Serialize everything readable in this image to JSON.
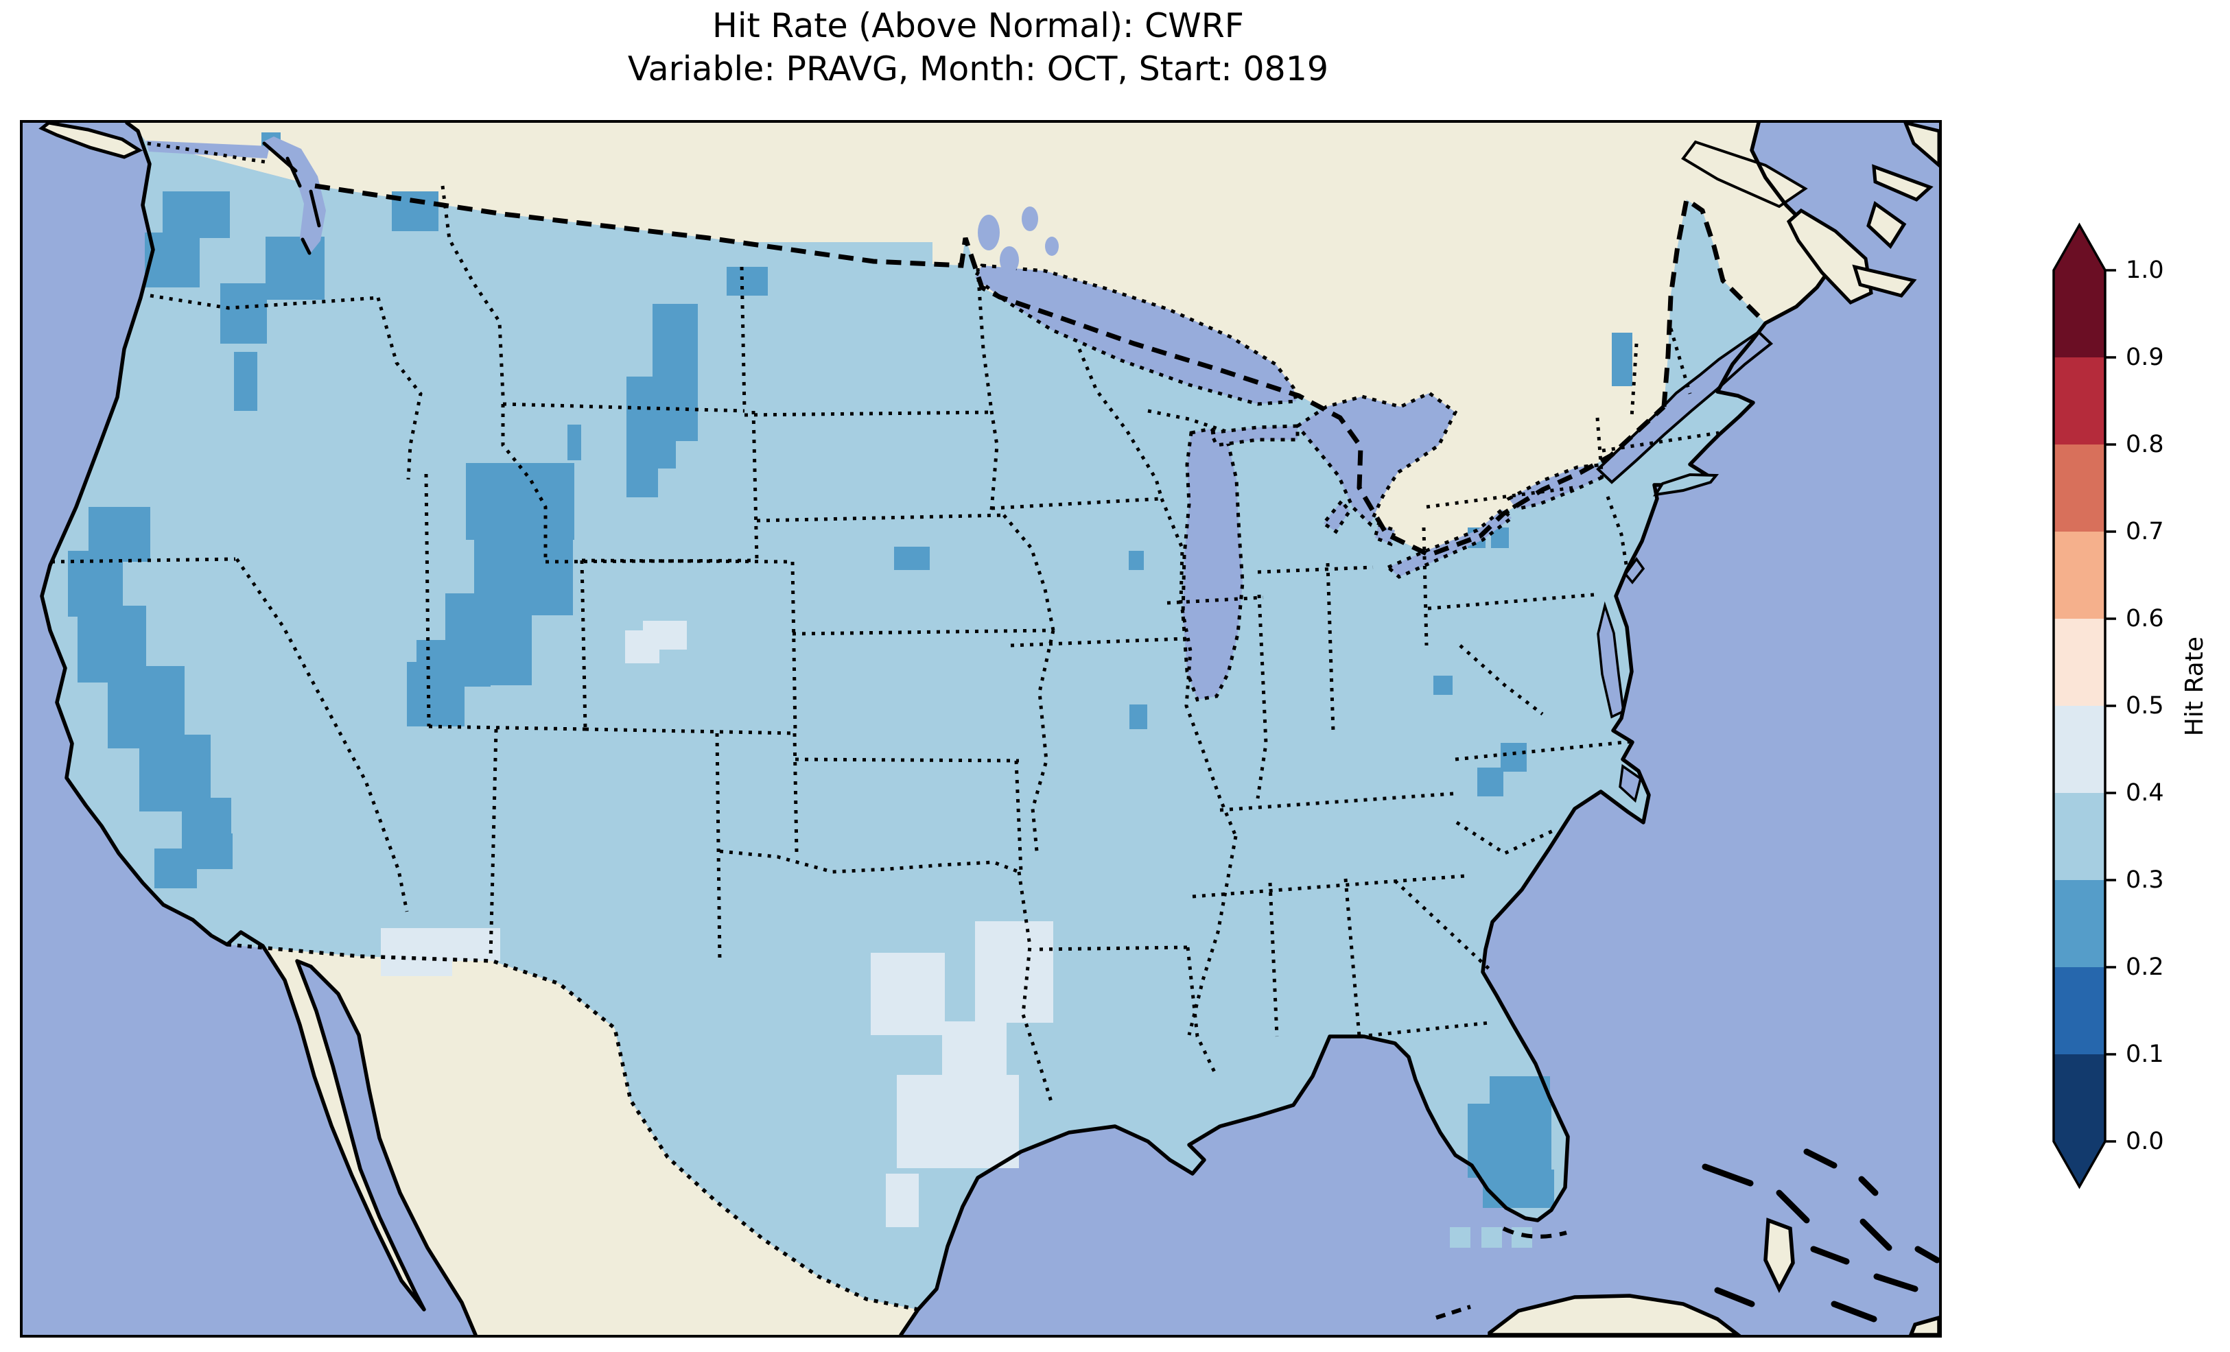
{
  "title": {
    "line1": "Hit Rate (Above Normal): CWRF",
    "line2": "Variable: PRAVG, Month: OCT, Start: 0819"
  },
  "colorbar": {
    "label": "Hit Rate",
    "ticks": [
      "1.0",
      "0.9",
      "0.8",
      "0.7",
      "0.6",
      "0.5",
      "0.4",
      "0.3",
      "0.2",
      "0.1",
      "0.0"
    ],
    "extend": "both",
    "arrow_top_color": "#6b0e24",
    "arrow_bottom_color": "#123a6d",
    "segments_top_to_bottom": [
      {
        "range": "0.9-1.0",
        "color": "#6b0e24"
      },
      {
        "range": "0.8-0.9",
        "color": "#b52b3b"
      },
      {
        "range": "0.7-0.8",
        "color": "#d8705b"
      },
      {
        "range": "0.6-0.7",
        "color": "#f5b08c"
      },
      {
        "range": "0.5-0.6",
        "color": "#fbe5d7"
      },
      {
        "range": "0.4-0.5",
        "color": "#dde9f2"
      },
      {
        "range": "0.3-0.4",
        "color": "#a6cee1"
      },
      {
        "range": "0.2-0.3",
        "color": "#559dc9"
      },
      {
        "range": "0.1-0.2",
        "color": "#2667ad"
      },
      {
        "range": "0.0-0.1",
        "color": "#123a6d"
      }
    ]
  },
  "map": {
    "ocean_color": "#97acdb",
    "land_color": "#f0eddb",
    "coastline_color": "#000000"
  },
  "chart_data": {
    "type": "heatmap",
    "title": "Hit Rate (Above Normal): CWRF",
    "subtitle": "Variable: PRAVG, Month: OCT, Start: 0819",
    "colorbar_label": "Hit Rate",
    "value_range": [
      0.0,
      1.0
    ],
    "bin_width": 0.1,
    "colormap": "RdBu_r, 10 discrete bins, colorbar extended with arrows at both ends",
    "legend_position": "right",
    "bins": {
      "0.0-0.1": "#123a6d",
      "0.1-0.2": "#2667ad",
      "0.2-0.3": "#559dc9",
      "0.3-0.4": "#a6cee1",
      "0.4-0.5": "#dde9f2",
      "0.5-0.6": "#fbe5d7",
      "0.6-0.7": "#f5b08c",
      "0.7-0.8": "#d8705b",
      "0.8-0.9": "#b52b3b",
      "0.9-1.0": "#6b0e24"
    },
    "dominant_bin": "0.3-0.4",
    "summary": "Hit rate over CONUS is mostly 0.3-0.4. Lower values (0.2-0.3) over western Washington, Cascades, northern Idaho, Sierra Nevada/Nevada, Utah, Montana-Wyoming, scattered plains/Northeast cells and central-south Florida. Higher values (0.4-0.5) over east/central Texas, north-central Colorado and the New Mexico border region.",
    "patches": {
      "0.2-0.3": [
        [
          348,
          14,
          28,
          26
        ],
        [
          204,
          100,
          98,
          68
        ],
        [
          178,
          160,
          80,
          80
        ],
        [
          288,
          234,
          68,
          88
        ],
        [
          308,
          334,
          34,
          86
        ],
        [
          354,
          166,
          86,
          92
        ],
        [
          538,
          100,
          68,
          58
        ],
        [
          96,
          560,
          90,
          80
        ],
        [
          66,
          624,
          80,
          96
        ],
        [
          80,
          704,
          100,
          112
        ],
        [
          124,
          792,
          112,
          120
        ],
        [
          170,
          892,
          104,
          112
        ],
        [
          232,
          984,
          72,
          80
        ],
        [
          192,
          1058,
          62,
          58
        ],
        [
          254,
          1036,
          52,
          52
        ],
        [
          646,
          496,
          158,
          112
        ],
        [
          658,
          604,
          144,
          114
        ],
        [
          616,
          686,
          126,
          134
        ],
        [
          574,
          754,
          108,
          68
        ],
        [
          560,
          786,
          84,
          94
        ],
        [
          794,
          440,
          20,
          52
        ],
        [
          918,
          264,
          66,
          200
        ],
        [
          880,
          370,
          72,
          134
        ],
        [
          880,
          500,
          46,
          46
        ],
        [
          1026,
          210,
          60,
          42
        ],
        [
          1270,
          618,
          52,
          34
        ],
        [
          1612,
          624,
          22,
          28
        ],
        [
          1613,
          848,
          26,
          36
        ],
        [
          2316,
          306,
          30,
          78
        ],
        [
          2106,
          590,
          26,
          30
        ],
        [
          2140,
          590,
          26,
          30
        ],
        [
          2056,
          806,
          28,
          28
        ],
        [
          2154,
          904,
          38,
          42
        ],
        [
          2120,
          940,
          38,
          42
        ],
        [
          2138,
          1390,
          88,
          52
        ],
        [
          2106,
          1430,
          122,
          108
        ],
        [
          2128,
          1526,
          104,
          56
        ]
      ],
      "0.4-0.5": [
        [
          878,
          740,
          50,
          48
        ],
        [
          904,
          726,
          64,
          42
        ],
        [
          522,
          1174,
          104,
          70
        ],
        [
          604,
          1174,
          92,
          48
        ],
        [
          1236,
          1210,
          108,
          120
        ],
        [
          1388,
          1164,
          114,
          148
        ],
        [
          1274,
          1388,
          178,
          136
        ],
        [
          1340,
          1310,
          94,
          88
        ],
        [
          1258,
          1532,
          48,
          78
        ]
      ],
      "0.3-0.4_outliers": [
        [
          944,
          174,
          382,
          34
        ],
        [
          1178,
          1438,
          112,
          78
        ],
        [
          1238,
          1478,
          72,
          62
        ],
        [
          2080,
          1610,
          30,
          30
        ],
        [
          2126,
          1610,
          30,
          30
        ],
        [
          2170,
          1610,
          30,
          30
        ]
      ]
    }
  }
}
